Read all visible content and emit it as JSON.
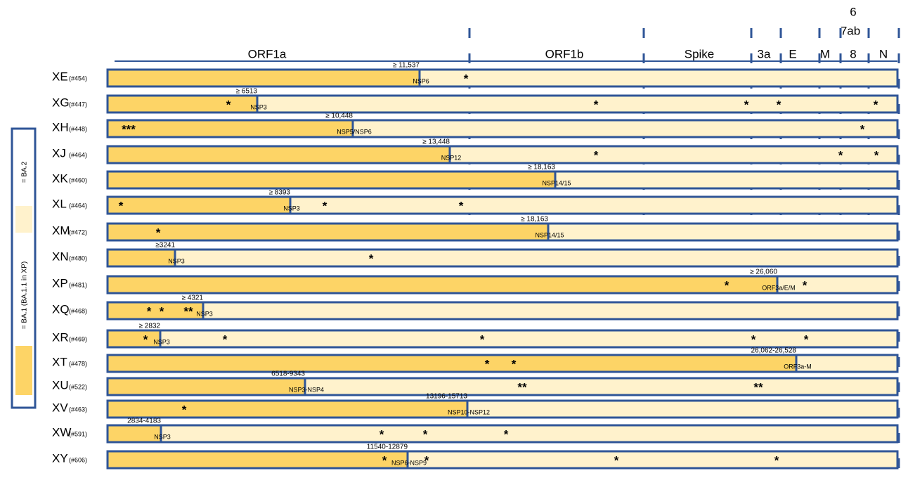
{
  "genes": [
    "ORF1a",
    "ORF1b",
    "Spike",
    "3a",
    "E",
    "M",
    "6",
    "7ab",
    "8",
    "N"
  ],
  "legend": {
    "ba2": "= BA.2",
    "ba1": "= BA.1 (BA.1.1 in XP)"
  },
  "rows": [
    {
      "label": "XE",
      "count": "(#454)",
      "breakpoint": "≥ 11,537",
      "region": "NSP6",
      "stars": [
        "*"
      ]
    },
    {
      "label": "XG",
      "count": "(#447)",
      "breakpoint": "≥ 6513",
      "region": "NSP3",
      "stars": [
        "*",
        "*",
        "*",
        "*",
        "*"
      ]
    },
    {
      "label": "XH",
      "count": "(#448)",
      "breakpoint": "≥ 10,448",
      "region": "NSP5/NSP6",
      "stars": [
        "***",
        "*"
      ]
    },
    {
      "label": "XJ",
      "count": "(#464)",
      "breakpoint": "≥ 13,448",
      "region": "NSP12",
      "stars": [
        "*",
        "*",
        "*"
      ]
    },
    {
      "label": "XK",
      "count": "(#460)",
      "breakpoint": "≥ 18,163",
      "region": "NSP14/15",
      "stars": []
    },
    {
      "label": "XL",
      "count": "(#464)",
      "breakpoint": "≥ 8393",
      "region": "NSP3",
      "stars": [
        "*",
        "*",
        "*"
      ]
    },
    {
      "label": "XM",
      "count": "(#472)",
      "breakpoint": "≥ 18,163",
      "region": "NSP14/15",
      "stars": [
        "*"
      ]
    },
    {
      "label": "XN",
      "count": "(#480)",
      "breakpoint": "≥3241",
      "region": "NSP3",
      "stars": [
        "*"
      ]
    },
    {
      "label": "XP",
      "count": "(#481)",
      "breakpoint": "≥ 26,060",
      "region": "ORF3a/E/M",
      "stars": [
        "*",
        "*"
      ]
    },
    {
      "label": "XQ",
      "count": "(#468)",
      "breakpoint": "≥ 4321",
      "region": "NSP3",
      "stars": [
        "*",
        "*",
        "**"
      ]
    },
    {
      "label": "XR",
      "count": "(#469)",
      "breakpoint": "≥ 2832",
      "region": "NSP3",
      "stars": [
        "*",
        "*",
        "*",
        "*",
        "*"
      ]
    },
    {
      "label": "XT",
      "count": "(#478)",
      "breakpoint": "26,062-26,528",
      "region": "ORF3a-M",
      "stars": [
        "*",
        "*"
      ]
    },
    {
      "label": "XU",
      "count": "(#522)",
      "breakpoint": "6518-9343",
      "region": "NSP3-NSP4",
      "stars": [
        "**",
        "**"
      ]
    },
    {
      "label": "XV",
      "count": "(#463)",
      "breakpoint": "13196-15713",
      "region": "NSP10-NSP12",
      "stars": [
        "*"
      ]
    },
    {
      "label": "XW",
      "count": "(#591)",
      "breakpoint": "2834-4183",
      "region": "NSP3",
      "stars": [
        "*",
        "*",
        "*"
      ]
    },
    {
      "label": "XY",
      "count": "(#606)",
      "breakpoint": "11540-12879",
      "region": "NSP6-NSP9",
      "stars": [
        "*",
        "*",
        "*",
        "*"
      ]
    }
  ]
}
